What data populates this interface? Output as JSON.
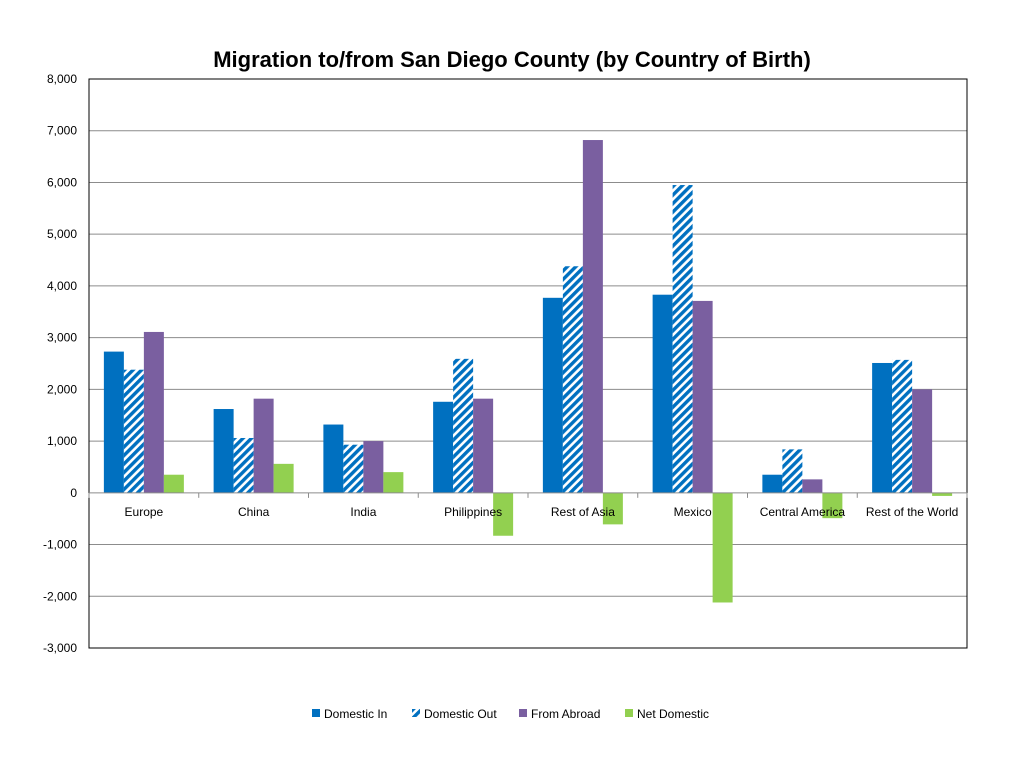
{
  "chart_data": {
    "type": "bar",
    "title": "Migration to/from San Diego County (by Country of Birth)",
    "xlabel": "",
    "ylabel": "",
    "ylim": [
      -3000,
      8000
    ],
    "yticks": [
      8000,
      7000,
      6000,
      5000,
      4000,
      3000,
      2000,
      1000,
      0,
      -1000,
      -2000,
      -3000
    ],
    "ytick_labels": [
      "8,000",
      "7,000",
      "6,000",
      "5,000",
      "4,000",
      "3,000",
      "2,000",
      "1,000",
      "0",
      "-1,000",
      "-2,000",
      "-3,000"
    ],
    "grid": true,
    "legend_position": "bottom",
    "categories": [
      "Europe",
      "China",
      "India",
      "Philippines",
      "Rest of Asia",
      "Mexico",
      "Central America",
      "Rest of the World"
    ],
    "series": [
      {
        "name": "Domestic In",
        "color": "#0070C0",
        "pattern": "solid",
        "values": [
          2730,
          1620,
          1320,
          1760,
          3770,
          3830,
          350,
          2510
        ]
      },
      {
        "name": "Domestic Out",
        "color": "#0070C0",
        "pattern": "diagonal-stripes",
        "values": [
          2380,
          1060,
          930,
          2590,
          4380,
          5950,
          840,
          2570
        ]
      },
      {
        "name": "From Abroad",
        "color": "#7A5FA0",
        "pattern": "solid",
        "values": [
          3110,
          1820,
          1000,
          1820,
          6820,
          3710,
          260,
          2000
        ]
      },
      {
        "name": "Net Domestic",
        "color": "#92D050",
        "pattern": "solid",
        "values": [
          350,
          560,
          400,
          -830,
          -610,
          -2120,
          -490,
          -60
        ]
      }
    ]
  }
}
